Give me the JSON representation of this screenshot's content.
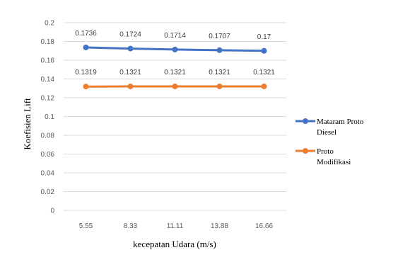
{
  "chart_data": {
    "type": "line",
    "title": "",
    "xlabel": "kecepatan Udara (m/s)",
    "ylabel": "Koefisien Lift",
    "categories": [
      "5.55",
      "8.33",
      "11.11",
      "13.88",
      "16.66"
    ],
    "ylim": [
      0,
      0.2
    ],
    "ytick_step": 0.02,
    "y_ticks": [
      "0",
      "0.02",
      "0.04",
      "0.06",
      "0.08",
      "0.1",
      "0.12",
      "0.14",
      "0.16",
      "0.18",
      "0.2"
    ],
    "grid": true,
    "legend_position": "right",
    "series": [
      {
        "name": "Mataram Proto Diesel",
        "values": [
          0.1736,
          0.1724,
          0.1714,
          0.1707,
          0.17
        ],
        "labels": [
          "0.1736",
          "0.1724",
          "0.1714",
          "0.1707",
          "0.17"
        ],
        "color": "#4472C4"
      },
      {
        "name": "Proto Modifikasi",
        "values": [
          0.1319,
          0.1321,
          0.1321,
          0.1321,
          0.1321
        ],
        "labels": [
          "0.1319",
          "0.1321",
          "0.1321",
          "0.1321",
          "0.1321"
        ],
        "color": "#ED7D31"
      }
    ],
    "colors": {
      "gridline": "#D9D9D9",
      "tick_text": "#595959"
    }
  }
}
